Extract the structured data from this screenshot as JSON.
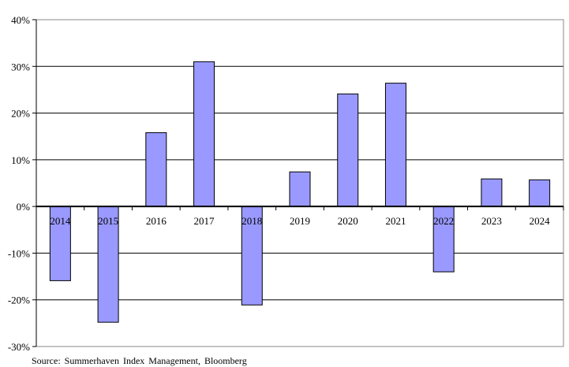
{
  "chart_data": {
    "type": "bar",
    "categories": [
      "2014",
      "2015",
      "2016",
      "2017",
      "2018",
      "2019",
      "2020",
      "2021",
      "2022",
      "2023",
      "2024"
    ],
    "values": [
      -15.9,
      -24.8,
      15.8,
      31.0,
      -21.1,
      7.4,
      24.1,
      26.4,
      -14.0,
      5.9,
      5.7
    ],
    "title": "",
    "xlabel": "",
    "ylabel": "",
    "ylim": [
      -30,
      40
    ],
    "yticks": [
      -30,
      -20,
      -10,
      0,
      10,
      20,
      30,
      40
    ],
    "ytick_suffix": "%",
    "grid": true,
    "bar_color": "#9999ff",
    "bar_edge_color": "#000000"
  },
  "source_text": "Source:  Summerhaven  Index  Management,  Bloomberg"
}
